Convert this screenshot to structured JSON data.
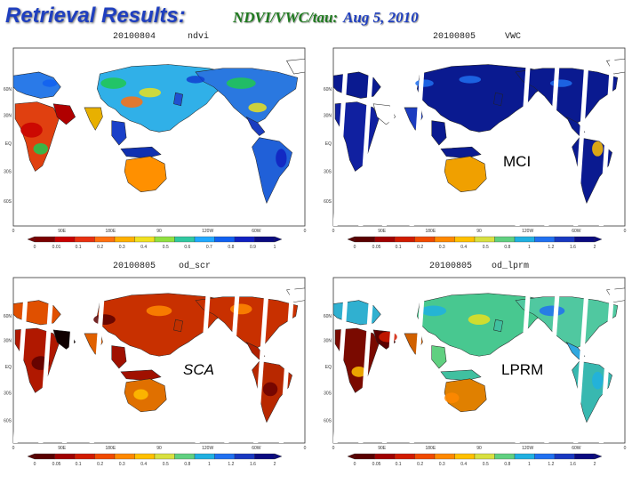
{
  "header": {
    "title": "Retrieval Results:",
    "subtitle_product": "NDVI/VWC/tau:",
    "subtitle_date": "Aug 5, 2010"
  },
  "panels": [
    {
      "date": "20100804",
      "variable": "ndvi",
      "algorithm": "",
      "colorbar_ticks": [
        "0",
        "0.01",
        "0.1",
        "0.2",
        "0.3",
        "0.4",
        "0.5",
        "0.6",
        "0.7",
        "0.8",
        "0.9",
        "1"
      ]
    },
    {
      "date": "20100805",
      "variable": "VWC",
      "algorithm": "MCI",
      "colorbar_ticks": [
        "0",
        "0.05",
        "0.1",
        "0.2",
        "0.3",
        "0.4",
        "0.5",
        "0.8",
        "1",
        "1.2",
        "1.6",
        "2"
      ]
    },
    {
      "date": "20100805",
      "variable": "od_scr",
      "algorithm": "SCA",
      "colorbar_ticks": [
        "0",
        "0.05",
        "0.1",
        "0.2",
        "0.3",
        "0.4",
        "0.5",
        "0.8",
        "1",
        "1.2",
        "1.6",
        "2"
      ]
    },
    {
      "date": "20100805",
      "variable": "od_lprm",
      "algorithm": "LPRM",
      "colorbar_ticks": [
        "0",
        "0.05",
        "0.1",
        "0.2",
        "0.3",
        "0.4",
        "0.5",
        "0.8",
        "1",
        "1.2",
        "1.6",
        "2"
      ]
    }
  ],
  "axes": {
    "lon_ticks": [
      "0",
      "90E",
      "180E",
      "90",
      "120W",
      "60W",
      "0"
    ],
    "lat_ticks": [
      "60N",
      "30N",
      "EQ",
      "30S",
      "60S"
    ]
  },
  "palettes": {
    "ndvi": [
      "#7a0000",
      "#c80000",
      "#e83010",
      "#ff7010",
      "#ffb000",
      "#f0e020",
      "#90e040",
      "#30c8a0",
      "#20a8ff",
      "#1060f0",
      "#1020c0",
      "#0a0a80"
    ],
    "tau": [
      "#5a0000",
      "#a00000",
      "#d01a00",
      "#f04a00",
      "#ff8800",
      "#ffc000",
      "#d8e040",
      "#60d080",
      "#20b0e0",
      "#2070f0",
      "#1838c0",
      "#0a0a80"
    ]
  }
}
